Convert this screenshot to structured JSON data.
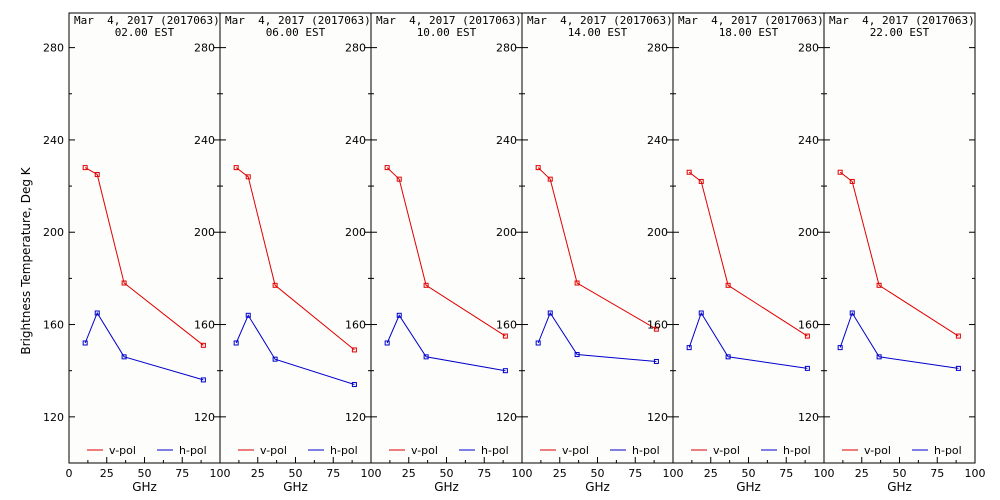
{
  "figure": {
    "ylabel": "Brightness Temperature, Deg K",
    "xlabel": "GHz"
  },
  "colors": {
    "vpol": "#e00000",
    "hpol": "#0000cc",
    "axis": "#000000",
    "background": "#fdfdfb"
  },
  "chart_data": [
    {
      "type": "line",
      "title_line1": "Mar  4, 2017 (2017063)",
      "title_line2": "02.00 EST",
      "xlabel": "GHz",
      "ylabel": "Brightness Temperature, Deg K",
      "xlim": [
        0,
        100
      ],
      "ylim": [
        100,
        295
      ],
      "x_ticks": [
        "0",
        "25",
        "50",
        "75",
        "100"
      ],
      "y_ticks": [
        "120",
        "160",
        "200",
        "240",
        "280"
      ],
      "x": [
        10.7,
        18.7,
        36.5,
        89.0
      ],
      "series": [
        {
          "name": "v-pol",
          "values": [
            228,
            225,
            178,
            151
          ]
        },
        {
          "name": "h-pol",
          "values": [
            152,
            165,
            146,
            136
          ]
        }
      ],
      "legend": "bottom"
    },
    {
      "type": "line",
      "title_line1": "Mar  4, 2017 (2017063)",
      "title_line2": "06.00 EST",
      "xlabel": "GHz",
      "ylabel": "Brightness Temperature, Deg K",
      "xlim": [
        0,
        100
      ],
      "ylim": [
        100,
        295
      ],
      "x_ticks": [
        "25",
        "50",
        "75",
        "100"
      ],
      "y_ticks": [
        "120",
        "160",
        "200",
        "240",
        "280"
      ],
      "x": [
        10.7,
        18.7,
        36.5,
        89.0
      ],
      "series": [
        {
          "name": "v-pol",
          "values": [
            228,
            224,
            177,
            149
          ]
        },
        {
          "name": "h-pol",
          "values": [
            152,
            164,
            145,
            134
          ]
        }
      ],
      "legend": "bottom"
    },
    {
      "type": "line",
      "title_line1": "Mar  4, 2017 (2017063)",
      "title_line2": "10.00 EST",
      "xlabel": "GHz",
      "ylabel": "Brightness Temperature, Deg K",
      "xlim": [
        0,
        100
      ],
      "ylim": [
        100,
        295
      ],
      "x_ticks": [
        "25",
        "50",
        "75",
        "100"
      ],
      "y_ticks": [
        "120",
        "160",
        "200",
        "240",
        "280"
      ],
      "x": [
        10.7,
        18.7,
        36.5,
        89.0
      ],
      "series": [
        {
          "name": "v-pol",
          "values": [
            228,
            223,
            177,
            155
          ]
        },
        {
          "name": "h-pol",
          "values": [
            152,
            164,
            146,
            140
          ]
        }
      ],
      "legend": "bottom"
    },
    {
      "type": "line",
      "title_line1": "Mar  4, 2017 (2017063)",
      "title_line2": "14.00 EST",
      "xlabel": "GHz",
      "ylabel": "Brightness Temperature, Deg K",
      "xlim": [
        0,
        100
      ],
      "ylim": [
        100,
        295
      ],
      "x_ticks": [
        "25",
        "50",
        "75",
        "100"
      ],
      "y_ticks": [
        "120",
        "160",
        "200",
        "240",
        "280"
      ],
      "x": [
        10.7,
        18.7,
        36.5,
        89.0
      ],
      "series": [
        {
          "name": "v-pol",
          "values": [
            228,
            223,
            178,
            158
          ]
        },
        {
          "name": "h-pol",
          "values": [
            152,
            165,
            147,
            144
          ]
        }
      ],
      "legend": "bottom"
    },
    {
      "type": "line",
      "title_line1": "Mar  4, 2017 (2017063)",
      "title_line2": "18.00 EST",
      "xlabel": "GHz",
      "ylabel": "Brightness Temperature, Deg K",
      "xlim": [
        0,
        100
      ],
      "ylim": [
        100,
        295
      ],
      "x_ticks": [
        "25",
        "50",
        "75",
        "100"
      ],
      "y_ticks": [
        "120",
        "160",
        "200",
        "240",
        "280"
      ],
      "x": [
        10.7,
        18.7,
        36.5,
        89.0
      ],
      "series": [
        {
          "name": "v-pol",
          "values": [
            226,
            222,
            177,
            155
          ]
        },
        {
          "name": "h-pol",
          "values": [
            150,
            165,
            146,
            141
          ]
        }
      ],
      "legend": "bottom"
    },
    {
      "type": "line",
      "title_line1": "Mar  4, 2017 (2017063)",
      "title_line2": "22.00 EST",
      "xlabel": "GHz",
      "ylabel": "Brightness Temperature, Deg K",
      "xlim": [
        0,
        100
      ],
      "ylim": [
        100,
        295
      ],
      "x_ticks": [
        "25",
        "50",
        "75",
        "100"
      ],
      "y_ticks": [
        "120",
        "160",
        "200",
        "240",
        "280"
      ],
      "x": [
        10.7,
        18.7,
        36.5,
        89.0
      ],
      "series": [
        {
          "name": "v-pol",
          "values": [
            226,
            222,
            177,
            155
          ]
        },
        {
          "name": "h-pol",
          "values": [
            150,
            165,
            146,
            141
          ]
        }
      ],
      "legend": "bottom"
    }
  ]
}
